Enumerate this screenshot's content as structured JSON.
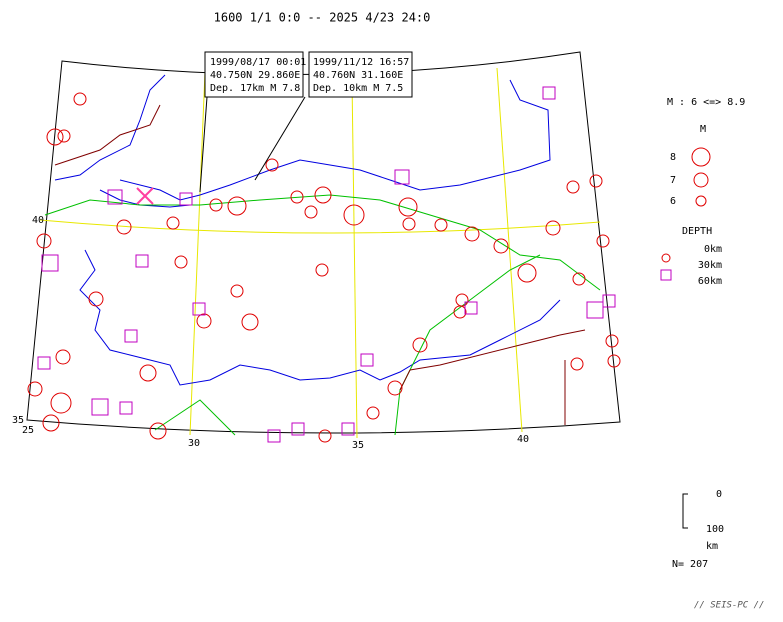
{
  "title": "1600 1/1 0:0 -- 2025 4/23 24:0",
  "callouts": [
    {
      "lines": [
        "1999/08/17 00:01",
        "40.750N  29.860E",
        "Dep. 17km    M 7.8"
      ]
    },
    {
      "lines": [
        "1999/11/12 16:57",
        "40.760N  31.160E",
        "Dep. 10km    M 7.5"
      ]
    }
  ],
  "legend": {
    "range": "M : 6 <=> 8.9",
    "m_title": "M",
    "m_labels": [
      "8",
      "7",
      "6"
    ],
    "depth_title": "DEPTH",
    "depth_labels": [
      "0km",
      "30km",
      "60km"
    ]
  },
  "axes": {
    "lat_labels": [
      "40",
      "35"
    ],
    "lon_labels": [
      "25",
      "30",
      "35",
      "40"
    ]
  },
  "depth_scale": {
    "top": "0",
    "bottom": "100",
    "unit": "km"
  },
  "count": "N= 207",
  "footer": "// SEIS-PC //"
}
